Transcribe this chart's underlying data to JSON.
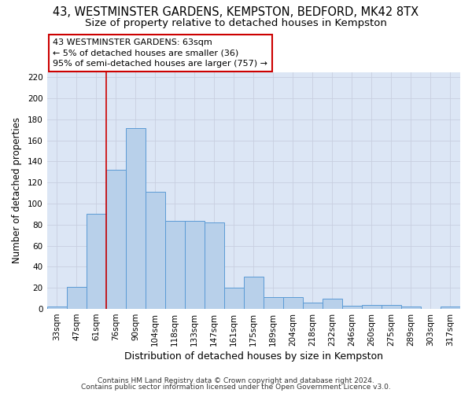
{
  "title1": "43, WESTMINSTER GARDENS, KEMPSTON, BEDFORD, MK42 8TX",
  "title2": "Size of property relative to detached houses in Kempston",
  "xlabel": "Distribution of detached houses by size in Kempston",
  "ylabel": "Number of detached properties",
  "categories": [
    "33sqm",
    "47sqm",
    "61sqm",
    "76sqm",
    "90sqm",
    "104sqm",
    "118sqm",
    "133sqm",
    "147sqm",
    "161sqm",
    "175sqm",
    "189sqm",
    "204sqm",
    "218sqm",
    "232sqm",
    "246sqm",
    "260sqm",
    "275sqm",
    "289sqm",
    "303sqm",
    "317sqm"
  ],
  "values": [
    2,
    21,
    90,
    132,
    172,
    111,
    84,
    84,
    82,
    20,
    31,
    11,
    11,
    6,
    10,
    3,
    4,
    4,
    2,
    0,
    2
  ],
  "bar_color": "#b8d0ea",
  "bar_edge_color": "#5b9bd5",
  "background_color": "#dce6f5",
  "vline_color": "#cc0000",
  "vline_x_index": 2,
  "annotation_lines": [
    "43 WESTMINSTER GARDENS: 63sqm",
    "← 5% of detached houses are smaller (36)",
    "95% of semi-detached houses are larger (757) →"
  ],
  "annotation_box_color": "#ffffff",
  "annotation_box_edge_color": "#cc0000",
  "footer1": "Contains HM Land Registry data © Crown copyright and database right 2024.",
  "footer2": "Contains public sector information licensed under the Open Government Licence v3.0.",
  "ylim": [
    0,
    225
  ],
  "yticks": [
    0,
    20,
    40,
    60,
    80,
    100,
    120,
    140,
    160,
    180,
    200,
    220
  ],
  "grid_color": "#c8cfe0",
  "title1_fontsize": 10.5,
  "title2_fontsize": 9.5,
  "xlabel_fontsize": 9,
  "ylabel_fontsize": 8.5,
  "tick_fontsize": 7.5,
  "annotation_fontsize": 8,
  "footer_fontsize": 6.5
}
